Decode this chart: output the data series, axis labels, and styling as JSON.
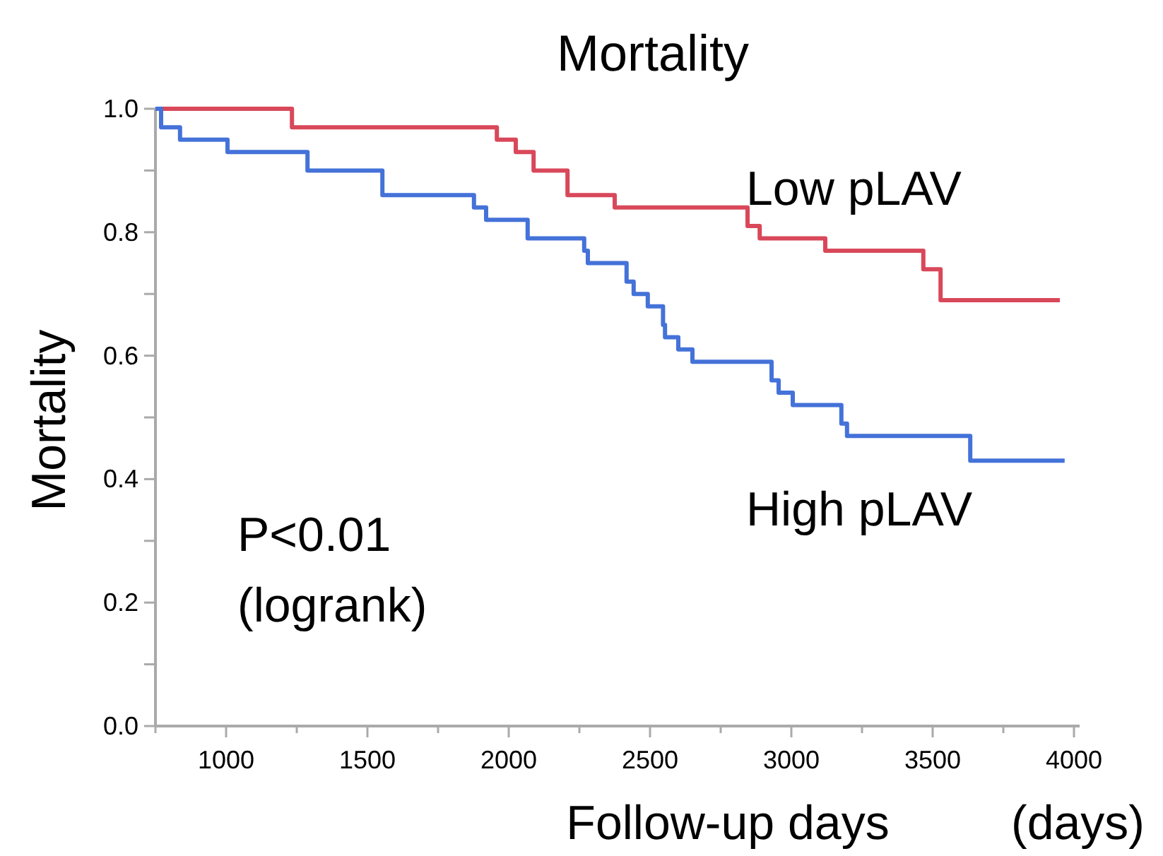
{
  "chart_data": {
    "type": "step",
    "title": "Mortality",
    "xlabel": "Follow-up days",
    "ylabel": "Mortality",
    "annotations": [
      "P<0.01\n(logrank)",
      "(days)"
    ],
    "xlim": [
      750,
      4020
    ],
    "ylim": [
      0,
      1
    ],
    "xticks": [
      {
        "value": 750,
        "label": null
      },
      1000,
      {
        "value": 1250,
        "label": null
      },
      1500,
      {
        "value": 1750,
        "label": null
      },
      2000,
      {
        "value": 2250,
        "label": null
      },
      2500,
      {
        "value": 2750,
        "label": null
      },
      3000,
      {
        "value": 3250,
        "label": null
      },
      3500,
      {
        "value": 3750,
        "label": null
      },
      4000
    ],
    "yticks": [
      {
        "value": 0,
        "label": "0.0"
      },
      {
        "value": 0.1,
        "label": null
      },
      {
        "value": 0.2,
        "label": "0.2"
      },
      {
        "value": 0.3,
        "label": null
      },
      {
        "value": 0.4,
        "label": "0.4"
      },
      {
        "value": 0.5,
        "label": null
      },
      {
        "value": 0.6,
        "label": "0.6"
      },
      {
        "value": 0.7,
        "label": null
      },
      {
        "value": 0.8,
        "label": "0.8"
      },
      {
        "value": 0.9,
        "label": null
      },
      {
        "value": 1,
        "label": "1.0"
      }
    ],
    "grid": false,
    "marker": "none",
    "line_style": "solid",
    "series": [
      {
        "name": "Low pLAV",
        "color": "#d9485a",
        "x": [
          750,
          1233,
          1958,
          2025,
          2088,
          2208,
          2375,
          2845,
          2888,
          3120,
          3467,
          3528,
          3950
        ],
        "values": [
          1.0,
          0.97,
          0.95,
          0.93,
          0.9,
          0.86,
          0.84,
          0.81,
          0.79,
          0.77,
          0.74,
          0.69,
          0.69
        ]
      },
      {
        "name": "High pLAV",
        "color": "#4472d9",
        "x": [
          750,
          770,
          837,
          1005,
          1288,
          1553,
          1877,
          1920,
          2067,
          2267,
          2280,
          2417,
          2442,
          2492,
          2546,
          2553,
          2600,
          2650,
          2930,
          2955,
          3005,
          3177,
          3197,
          3633,
          3967
        ],
        "values": [
          1.0,
          0.97,
          0.95,
          0.93,
          0.9,
          0.86,
          0.84,
          0.82,
          0.79,
          0.77,
          0.75,
          0.72,
          0.7,
          0.68,
          0.65,
          0.63,
          0.61,
          0.59,
          0.56,
          0.54,
          0.52,
          0.49,
          0.47,
          0.43,
          0.43
        ]
      }
    ]
  }
}
